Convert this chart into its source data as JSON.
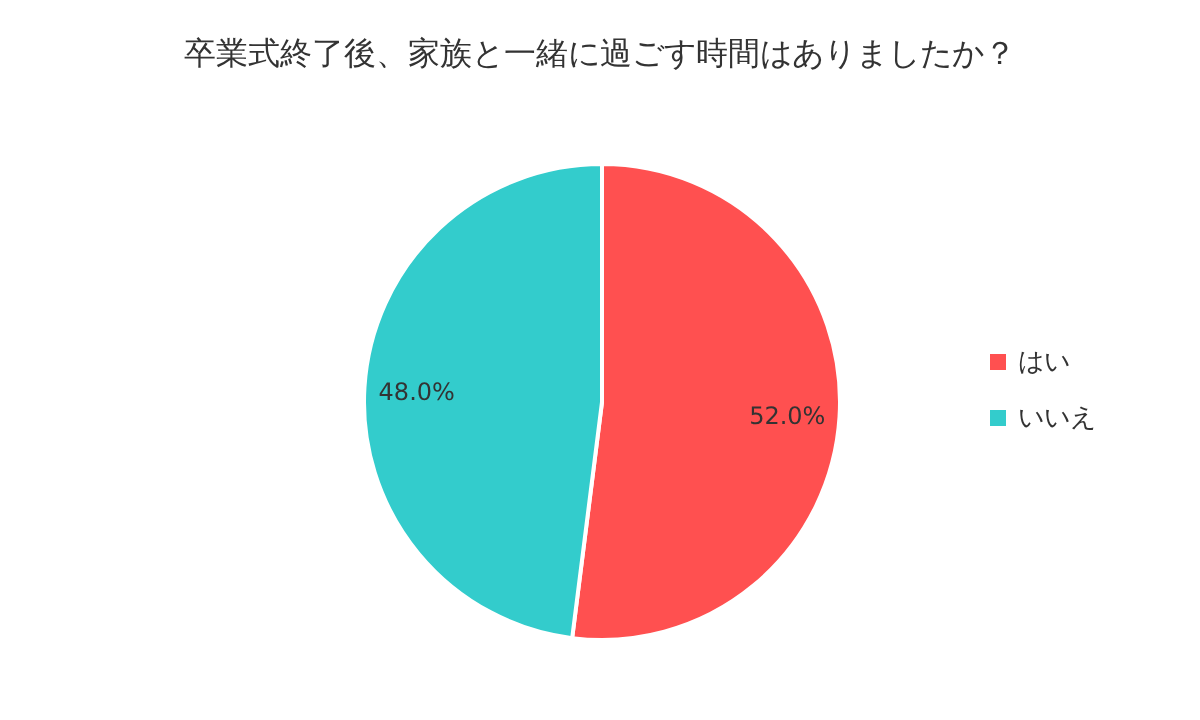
{
  "chart_data": {
    "type": "pie",
    "title": "卒業式終了後、家族と一緒に過ごす時間はありましたか？",
    "categories": [
      "はい",
      "いいえ"
    ],
    "values": [
      52.0,
      48.0
    ],
    "colors": [
      "#ff5050",
      "#33cccc"
    ],
    "value_labels": [
      "52.0%",
      "48.0%"
    ],
    "legend": "right"
  }
}
